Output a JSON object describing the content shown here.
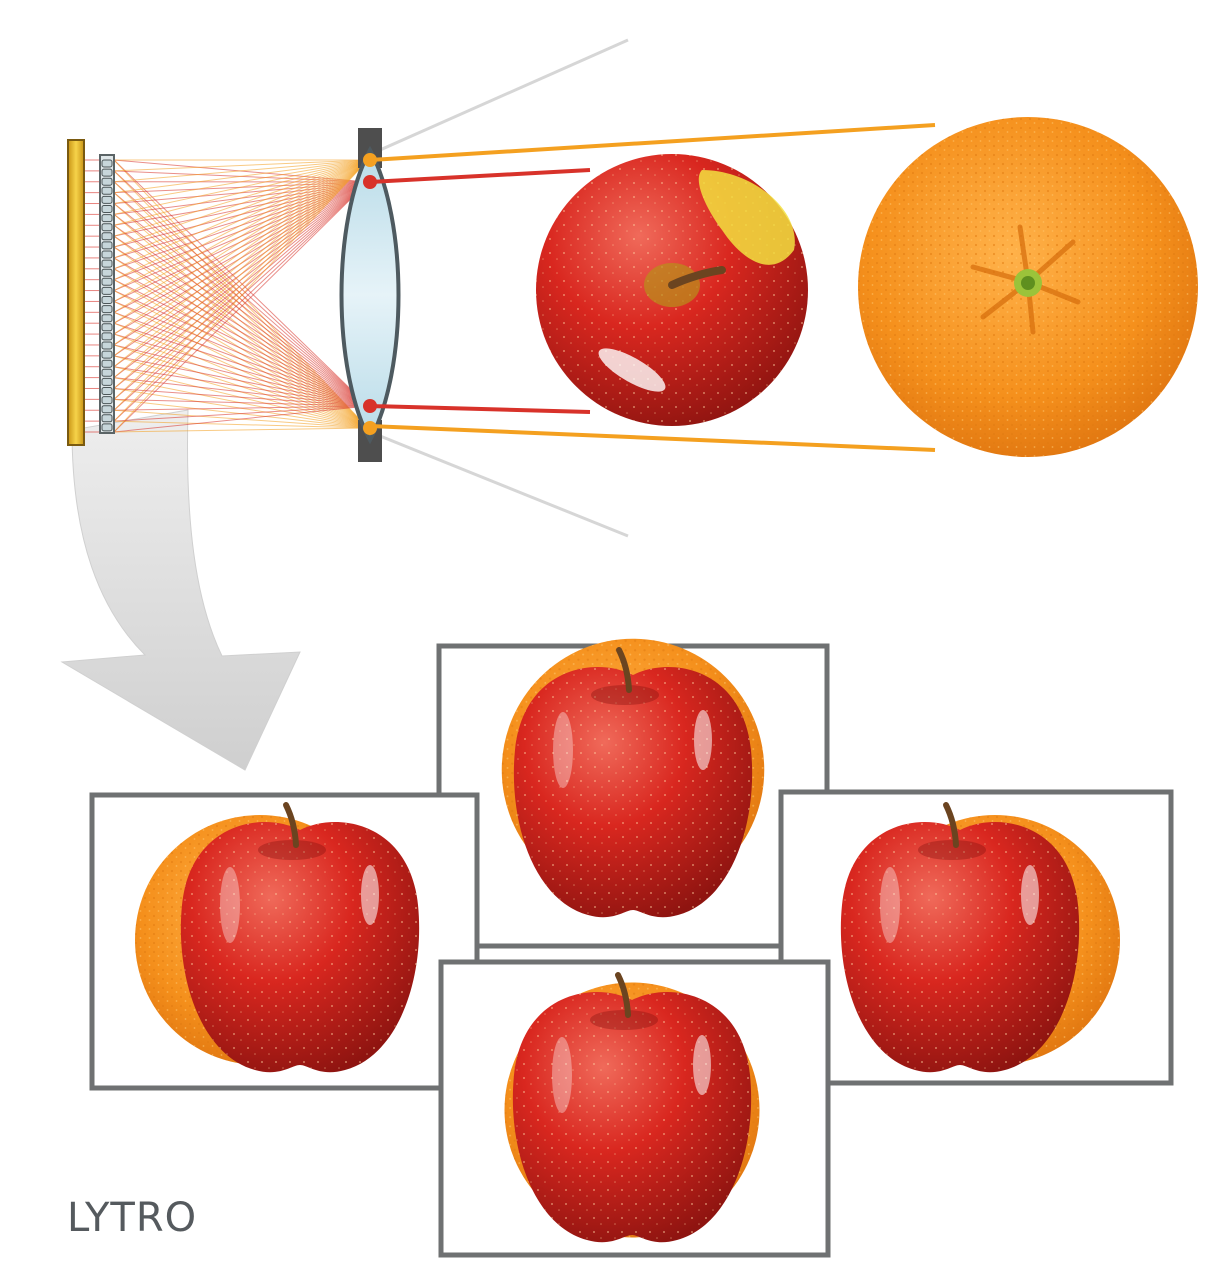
{
  "brand": {
    "logo_text": "LYTRO"
  },
  "diagram": {
    "components": [
      "sensor-icon",
      "microlens-array-icon",
      "main-lens-icon",
      "apple-icon",
      "orange-icon",
      "arrow-icon"
    ],
    "views": [
      "view-top",
      "view-left",
      "view-right",
      "view-bottom"
    ]
  },
  "colors": {
    "orange_ray": "#f4a020",
    "red_ray": "#d8322a",
    "lens_fill": "#cfe6f0",
    "frame_stroke": "#6f7172",
    "sensor_yellow": "#e7b320",
    "arrow_gray": "#d9d9d9"
  }
}
